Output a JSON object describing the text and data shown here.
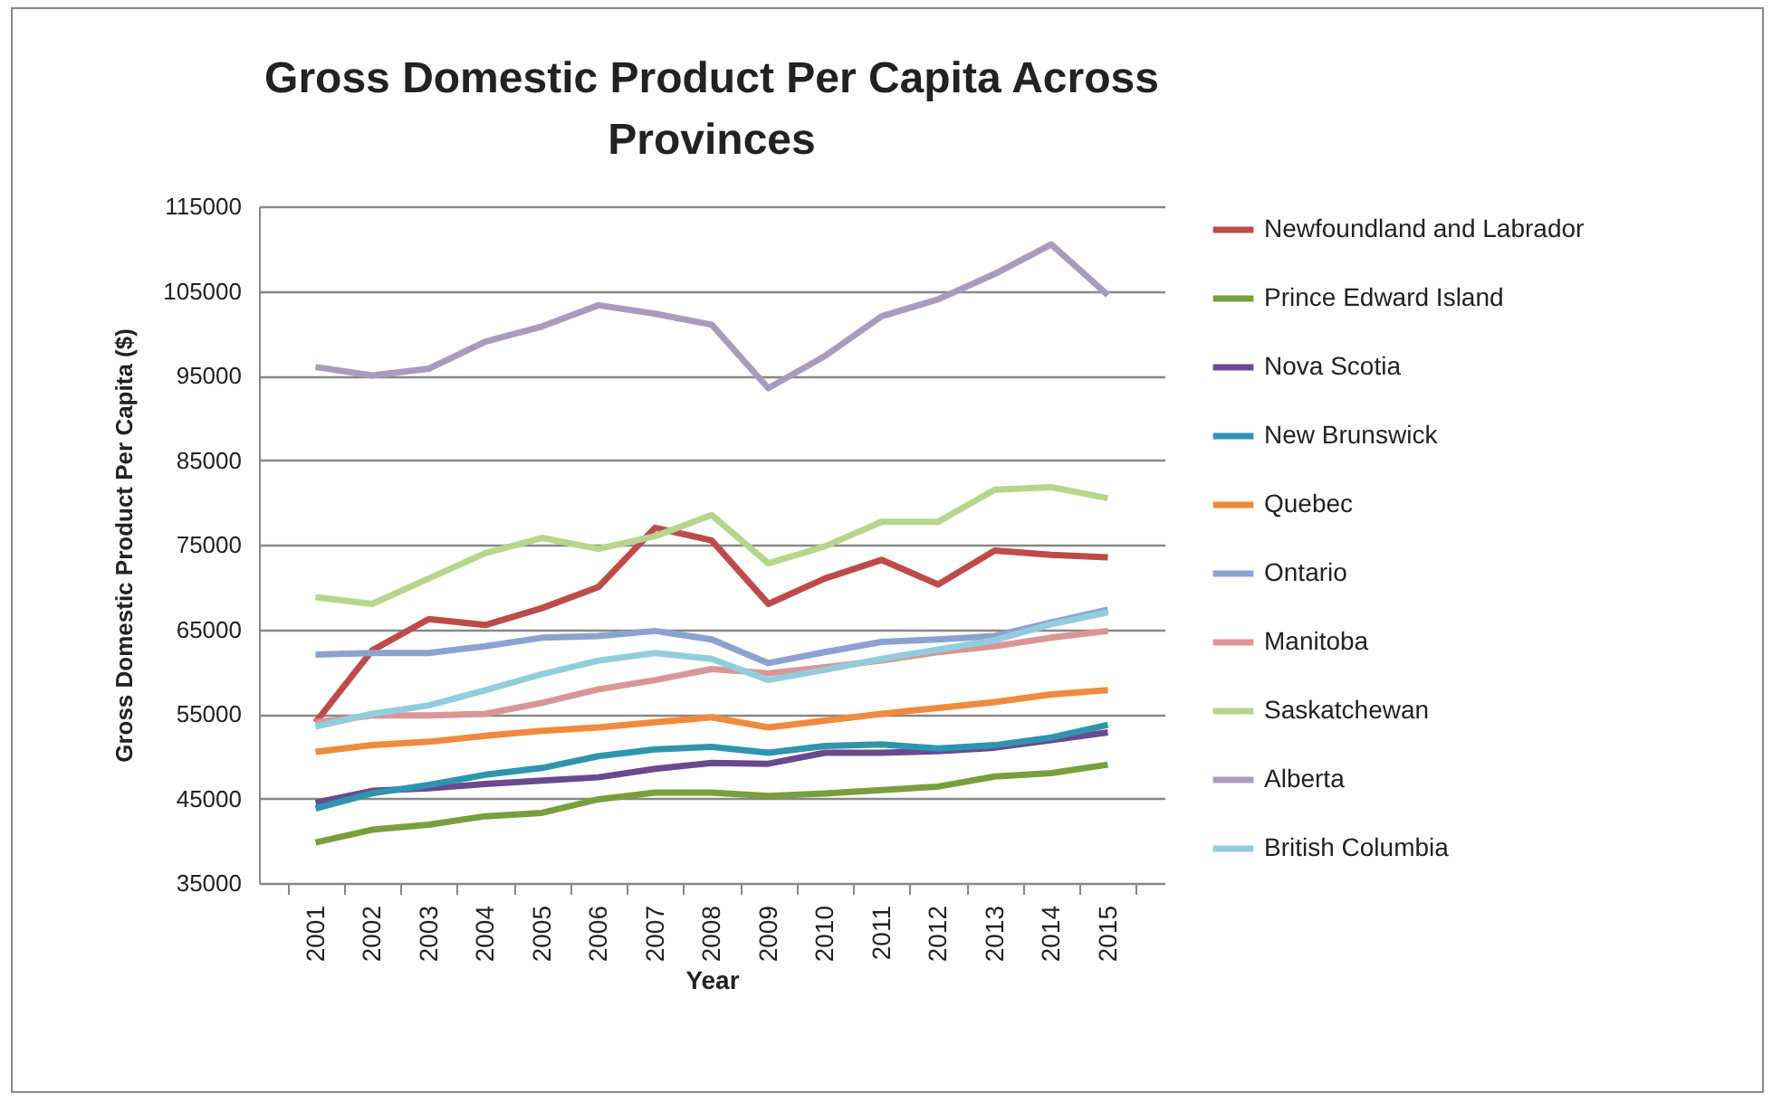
{
  "chart_data": {
    "type": "line",
    "title": "Gross Domestic Product Per Capita Across Provinces",
    "xlabel": "Year",
    "ylabel": "Gross Domestic Product Per Capita ($)",
    "categories": [
      "2001",
      "2002",
      "2003",
      "2004",
      "2005",
      "2006",
      "2007",
      "2008",
      "2009",
      "2010",
      "2011",
      "2012",
      "2013",
      "2014",
      "2015"
    ],
    "ylim": [
      35000,
      115000
    ],
    "yticks": [
      35000,
      45000,
      55000,
      65000,
      75000,
      85000,
      95000,
      105000,
      115000
    ],
    "grid": "y",
    "legend": "right",
    "marker": "none",
    "line_style": "solid",
    "series": [
      {
        "name": "Newfoundland and Labrador",
        "color": "#be4b48",
        "values": [
          54000,
          62500,
          66200,
          65500,
          67500,
          70000,
          77000,
          75500,
          68000,
          71000,
          73200,
          70300,
          74300,
          73800,
          73500
        ]
      },
      {
        "name": "Prince Edward Island",
        "color": "#77a03c",
        "values": [
          39800,
          41300,
          41900,
          42900,
          43300,
          44900,
          45700,
          45700,
          45300,
          45600,
          46000,
          46400,
          47600,
          48000,
          49000
        ]
      },
      {
        "name": "Nova Scotia",
        "color": "#6a4a8f",
        "values": [
          44500,
          45900,
          46200,
          46700,
          47100,
          47500,
          48500,
          49200,
          49100,
          50400,
          50400,
          50600,
          51000,
          51900,
          52800
        ]
      },
      {
        "name": "New Brunswick",
        "color": "#2f95ae",
        "values": [
          43800,
          45600,
          46600,
          47800,
          48600,
          50000,
          50800,
          51100,
          50400,
          51200,
          51400,
          50900,
          51300,
          52200,
          53700
        ]
      },
      {
        "name": "Quebec",
        "color": "#f08a3c",
        "values": [
          50500,
          51300,
          51700,
          52400,
          53000,
          53400,
          54000,
          54600,
          53400,
          54200,
          55000,
          55700,
          56400,
          57300,
          57800
        ]
      },
      {
        "name": "Ontario",
        "color": "#8ca2d0",
        "values": [
          62000,
          62200,
          62200,
          63000,
          64000,
          64200,
          64800,
          63800,
          61000,
          62300,
          63500,
          63800,
          64200,
          65800,
          67300
        ]
      },
      {
        "name": "Manitoba",
        "color": "#d99694",
        "values": [
          54000,
          54800,
          54800,
          55000,
          56300,
          57900,
          59000,
          60300,
          59800,
          60500,
          61300,
          62300,
          63000,
          64000,
          64800
        ]
      },
      {
        "name": "Saskatchewan",
        "color": "#b7d58c",
        "values": [
          68800,
          68000,
          71000,
          74000,
          75800,
          74500,
          76000,
          78500,
          72800,
          74800,
          77700,
          77700,
          81500,
          81800,
          80500
        ]
      },
      {
        "name": "Alberta",
        "color": "#a99bbd",
        "values": [
          96000,
          95000,
          95800,
          99000,
          100800,
          103300,
          102300,
          101000,
          93500,
          97300,
          102000,
          104000,
          107000,
          110500,
          104500
        ]
      },
      {
        "name": "British Columbia",
        "color": "#93cddd",
        "values": [
          53500,
          55000,
          56000,
          57800,
          59700,
          61300,
          62200,
          61500,
          59000,
          60200,
          61500,
          62600,
          63700,
          65600,
          67000
        ]
      }
    ]
  }
}
